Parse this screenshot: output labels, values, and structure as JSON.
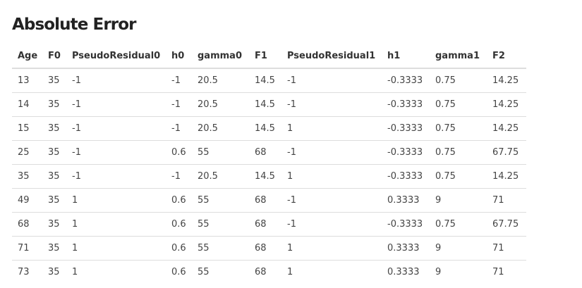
{
  "title": "Absolute Error",
  "table": {
    "columns": [
      "Age",
      "F0",
      "PseudoResidual0",
      "h0",
      "gamma0",
      "F1",
      "PseudoResidual1",
      "h1",
      "gamma1",
      "F2"
    ],
    "rows": [
      [
        "13",
        "35",
        "-1",
        "-1",
        "20.5",
        "14.5",
        "-1",
        "-0.3333",
        "0.75",
        "14.25"
      ],
      [
        "14",
        "35",
        "-1",
        "-1",
        "20.5",
        "14.5",
        "-1",
        "-0.3333",
        "0.75",
        "14.25"
      ],
      [
        "15",
        "35",
        "-1",
        "-1",
        "20.5",
        "14.5",
        "1",
        "-0.3333",
        "0.75",
        "14.25"
      ],
      [
        "25",
        "35",
        "-1",
        "0.6",
        "55",
        "68",
        "-1",
        "-0.3333",
        "0.75",
        "67.75"
      ],
      [
        "35",
        "35",
        "-1",
        "-1",
        "20.5",
        "14.5",
        "1",
        "-0.3333",
        "0.75",
        "14.25"
      ],
      [
        "49",
        "35",
        "1",
        "0.6",
        "55",
        "68",
        "-1",
        "0.3333",
        "9",
        "71"
      ],
      [
        "68",
        "35",
        "1",
        "0.6",
        "55",
        "68",
        "-1",
        "-0.3333",
        "0.75",
        "67.75"
      ],
      [
        "71",
        "35",
        "1",
        "0.6",
        "55",
        "68",
        "1",
        "0.3333",
        "9",
        "71"
      ],
      [
        "73",
        "35",
        "1",
        "0.6",
        "55",
        "68",
        "1",
        "0.3333",
        "9",
        "71"
      ]
    ]
  }
}
